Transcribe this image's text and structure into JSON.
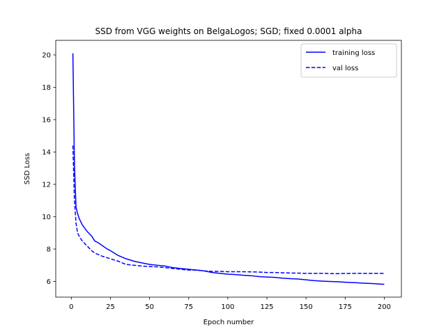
{
  "chart_data": {
    "type": "line",
    "title": "SSD from VGG weights on BelgaLogos; SGD; fixed 0.0001 alpha",
    "xlabel": "Epoch number",
    "ylabel": "SSD Loss",
    "xlim": [
      -9.95,
      210.95
    ],
    "ylim": [
      5.03,
      20.9
    ],
    "xticks": [
      0,
      25,
      50,
      75,
      100,
      125,
      150,
      175,
      200
    ],
    "yticks": [
      6,
      8,
      10,
      12,
      14,
      16,
      18,
      20
    ],
    "xtick_labels": [
      "0",
      "25",
      "50",
      "75",
      "100",
      "125",
      "150",
      "175",
      "200"
    ],
    "ytick_labels": [
      "6",
      "8",
      "10",
      "12",
      "14",
      "16",
      "18",
      "20"
    ],
    "grid": false,
    "legend_position": "upper right",
    "series": [
      {
        "name": "training loss",
        "color": "#0000ff",
        "linestyle": "solid",
        "x": [
          1,
          2,
          3,
          4,
          5,
          7,
          10,
          13,
          15,
          17,
          20,
          23,
          25,
          30,
          35,
          40,
          45,
          50,
          55,
          60,
          65,
          70,
          75,
          80,
          85,
          90,
          95,
          100,
          105,
          110,
          115,
          120,
          125,
          130,
          135,
          140,
          145,
          150,
          155,
          160,
          165,
          170,
          175,
          180,
          185,
          190,
          195,
          200
        ],
        "y": [
          20.1,
          13.2,
          10.6,
          10.2,
          9.9,
          9.5,
          9.1,
          8.8,
          8.5,
          8.4,
          8.2,
          8.0,
          7.9,
          7.6,
          7.4,
          7.25,
          7.15,
          7.05,
          7.0,
          6.95,
          6.85,
          6.8,
          6.75,
          6.7,
          6.65,
          6.55,
          6.5,
          6.45,
          6.42,
          6.38,
          6.35,
          6.3,
          6.27,
          6.25,
          6.2,
          6.17,
          6.15,
          6.1,
          6.05,
          6.02,
          6.0,
          5.98,
          5.95,
          5.93,
          5.9,
          5.88,
          5.85,
          5.82
        ]
      },
      {
        "name": "val loss",
        "color": "#0000ff",
        "linestyle": "dashed",
        "x": [
          1,
          2,
          3,
          4,
          5,
          7,
          10,
          13,
          15,
          20,
          25,
          30,
          35,
          40,
          45,
          50,
          55,
          60,
          65,
          70,
          75,
          80,
          85,
          90,
          95,
          100,
          110,
          120,
          125,
          130,
          140,
          150,
          160,
          170,
          180,
          190,
          200
        ],
        "y": [
          14.4,
          11.0,
          9.6,
          9.0,
          8.8,
          8.5,
          8.2,
          7.9,
          7.75,
          7.55,
          7.4,
          7.25,
          7.05,
          7.0,
          6.95,
          6.92,
          6.9,
          6.85,
          6.8,
          6.75,
          6.7,
          6.7,
          6.65,
          6.62,
          6.62,
          6.6,
          6.6,
          6.58,
          6.55,
          6.55,
          6.52,
          6.5,
          6.5,
          6.48,
          6.5,
          6.5,
          6.5
        ]
      }
    ]
  }
}
